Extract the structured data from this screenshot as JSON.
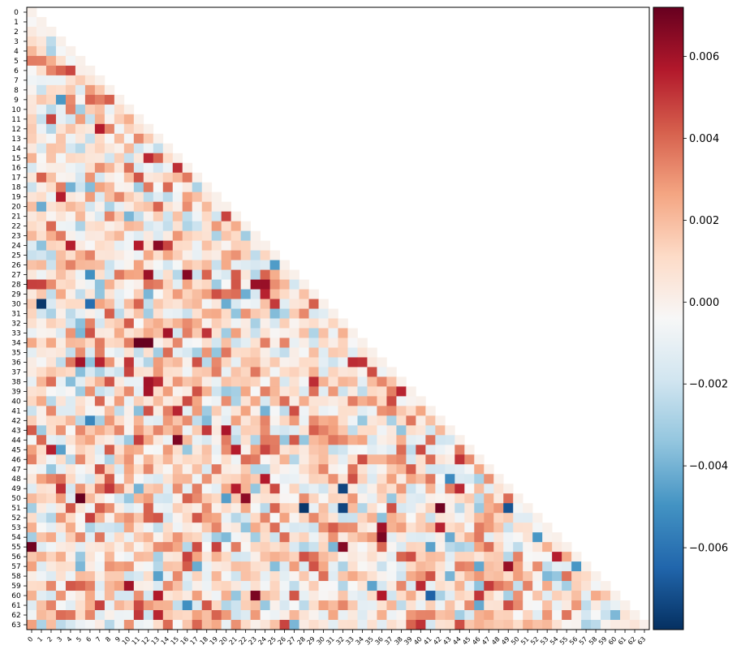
{
  "chart_data": {
    "type": "heatmap",
    "title": "",
    "xlabel": "",
    "ylabel": "",
    "n": 64,
    "mask": "lower-triangle",
    "x_tick_labels": [
      "0",
      "1",
      "2",
      "3",
      "4",
      "5",
      "6",
      "7",
      "8",
      "9",
      "10",
      "11",
      "12",
      "13",
      "14",
      "15",
      "16",
      "17",
      "18",
      "19",
      "20",
      "21",
      "22",
      "23",
      "24",
      "25",
      "26",
      "27",
      "28",
      "29",
      "30",
      "31",
      "32",
      "33",
      "34",
      "35",
      "36",
      "37",
      "38",
      "39",
      "40",
      "41",
      "42",
      "43",
      "44",
      "45",
      "46",
      "47",
      "48",
      "49",
      "50",
      "51",
      "52",
      "53",
      "54",
      "55",
      "56",
      "57",
      "58",
      "59",
      "60",
      "61",
      "62",
      "63"
    ],
    "y_tick_labels": [
      "0",
      "1",
      "2",
      "3",
      "4",
      "5",
      "6",
      "7",
      "8",
      "9",
      "10",
      "11",
      "12",
      "13",
      "14",
      "15",
      "16",
      "17",
      "18",
      "19",
      "20",
      "21",
      "22",
      "23",
      "24",
      "25",
      "26",
      "27",
      "28",
      "29",
      "30",
      "31",
      "32",
      "33",
      "34",
      "35",
      "36",
      "37",
      "38",
      "39",
      "40",
      "41",
      "42",
      "43",
      "44",
      "45",
      "46",
      "47",
      "48",
      "49",
      "50",
      "51",
      "52",
      "53",
      "54",
      "55",
      "56",
      "57",
      "58",
      "59",
      "60",
      "61",
      "62",
      "63"
    ],
    "colormap": "RdBu_r",
    "vmin": -0.008,
    "vmax": 0.0072,
    "colorbar_ticks": [
      "0.006",
      "0.004",
      "0.002",
      "0.000",
      "−0.002",
      "−0.004",
      "−0.006"
    ],
    "colorbar_tick_values": [
      0.006,
      0.004,
      0.002,
      0.0,
      -0.002,
      -0.004,
      -0.006
    ],
    "grid": false,
    "values_note_seed": 1337,
    "highlights": [
      {
        "row": 30,
        "col": 1,
        "value": -0.0078
      },
      {
        "row": 30,
        "col": 6,
        "value": -0.0062
      },
      {
        "row": 34,
        "col": 11,
        "value": 0.0072
      },
      {
        "row": 34,
        "col": 12,
        "value": 0.0072
      },
      {
        "row": 50,
        "col": 5,
        "value": 0.0072
      },
      {
        "row": 55,
        "col": 0,
        "value": 0.007
      },
      {
        "row": 51,
        "col": 42,
        "value": 0.007
      },
      {
        "row": 54,
        "col": 36,
        "value": 0.0068
      },
      {
        "row": 51,
        "col": 28,
        "value": -0.0078
      },
      {
        "row": 51,
        "col": 32,
        "value": -0.0074
      },
      {
        "row": 49,
        "col": 32,
        "value": -0.0074
      },
      {
        "row": 53,
        "col": 53,
        "value": -0.0074
      },
      {
        "row": 28,
        "col": 23,
        "value": 0.0062
      },
      {
        "row": 28,
        "col": 24,
        "value": 0.0062
      },
      {
        "row": 27,
        "col": 16,
        "value": 0.0066
      },
      {
        "row": 32,
        "col": 33,
        "value": 0.0062
      },
      {
        "row": 34,
        "col": 35,
        "value": -0.0066
      },
      {
        "row": 55,
        "col": 32,
        "value": 0.0066
      },
      {
        "row": 60,
        "col": 23,
        "value": 0.0068
      },
      {
        "row": 60,
        "col": 41,
        "value": -0.0066
      },
      {
        "row": 51,
        "col": 51,
        "value": 0.0068
      },
      {
        "row": 57,
        "col": 49,
        "value": 0.0062
      },
      {
        "row": 51,
        "col": 49,
        "value": -0.007
      }
    ]
  }
}
